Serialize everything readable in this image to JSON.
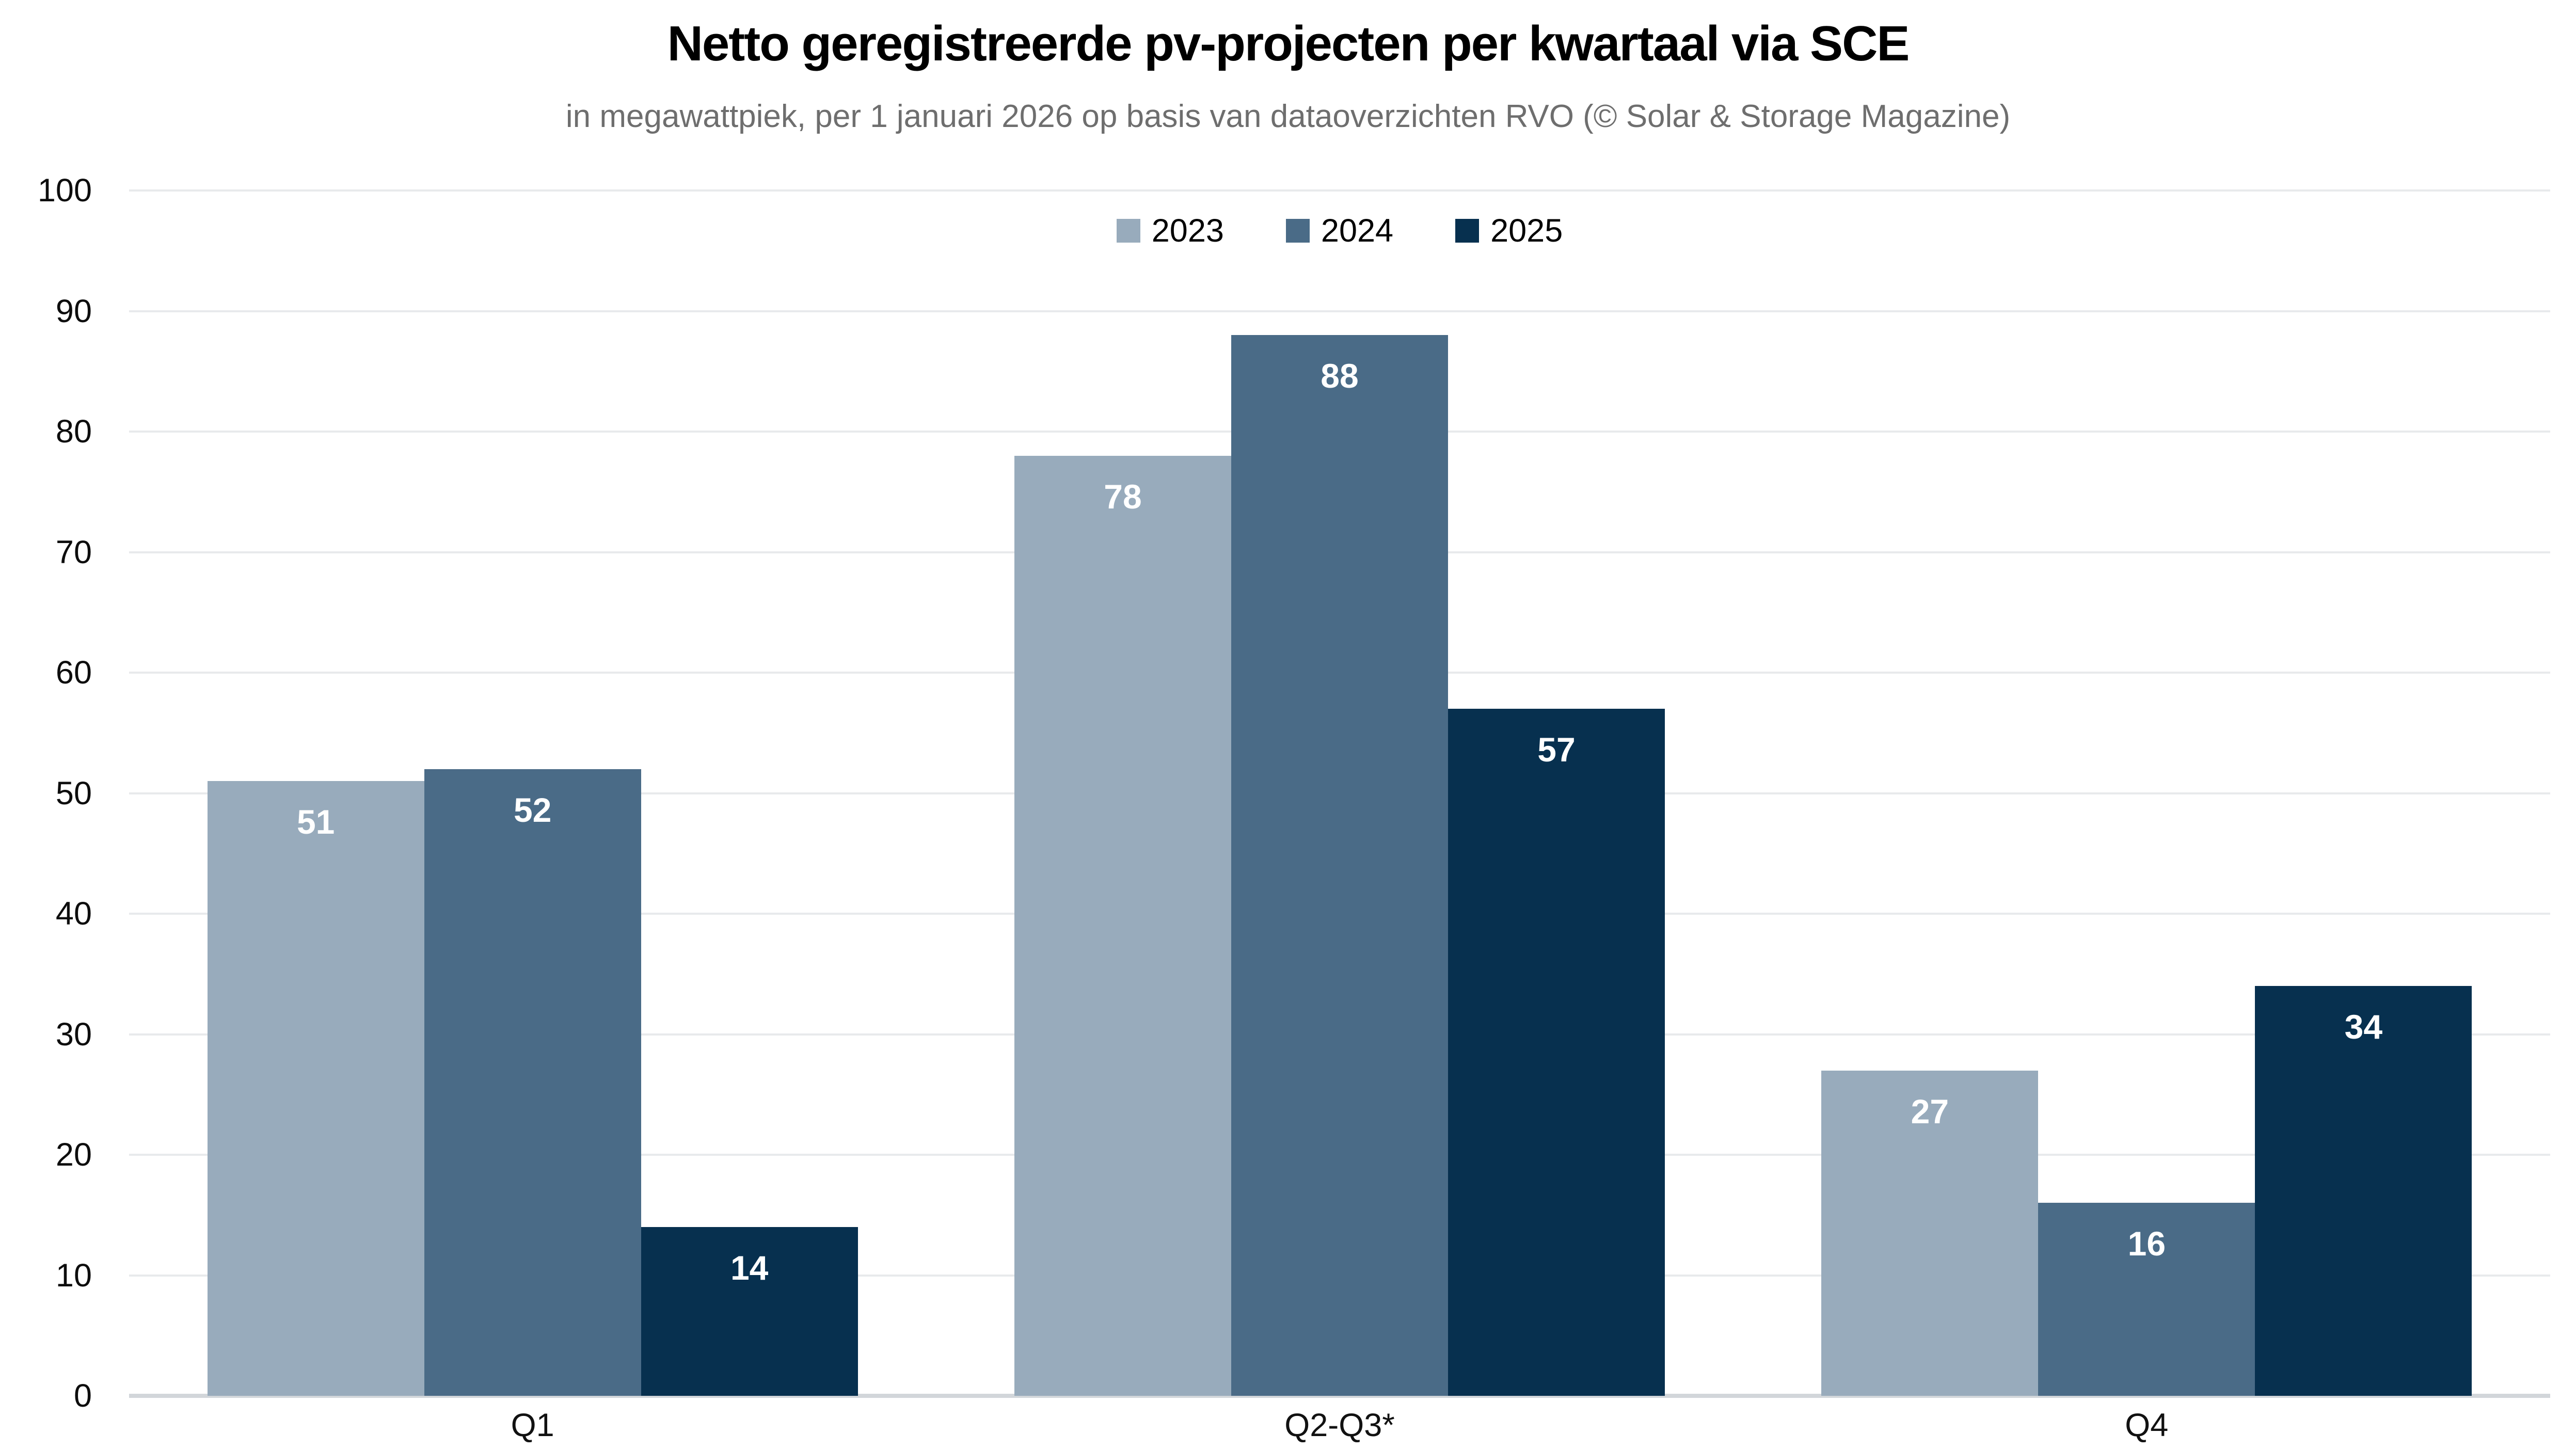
{
  "title": "Netto geregistreerde pv-projecten per kwartaal via SCE",
  "subtitle": "in megawattpiek, per 1 januari 2026 op basis van dataoverzichten RVO (© Solar & Storage Magazine)",
  "chart_data": {
    "type": "bar",
    "categories": [
      "Q1",
      "Q2-Q3*",
      "Q4"
    ],
    "series": [
      {
        "name": "2023",
        "color": "#98ABBC",
        "values": [
          51,
          78,
          27
        ]
      },
      {
        "name": "2024",
        "color": "#4A6B87",
        "values": [
          52,
          88,
          16
        ]
      },
      {
        "name": "2025",
        "color": "#07304F",
        "values": [
          14,
          57,
          34
        ]
      }
    ],
    "title": "Netto geregistreerde pv-projecten per kwartaal via SCE",
    "subtitle": "in megawattpiek, per 1 januari 2026 op basis van dataoverzichten RVO (© Solar & Storage Magazine)",
    "xlabel": "",
    "ylabel": "",
    "ylim": [
      0,
      100
    ],
    "ytick_step": 10,
    "grid": true,
    "legend_position": "top-center",
    "bar_label_color": "#ffffff"
  },
  "colors": {
    "background": "#ffffff",
    "title_text": "#000000",
    "subtitle_text": "#6e6e6e",
    "axis_text": "#0d0d0d",
    "gridline": "#e8eaec",
    "baseline": "#d2d6da"
  }
}
